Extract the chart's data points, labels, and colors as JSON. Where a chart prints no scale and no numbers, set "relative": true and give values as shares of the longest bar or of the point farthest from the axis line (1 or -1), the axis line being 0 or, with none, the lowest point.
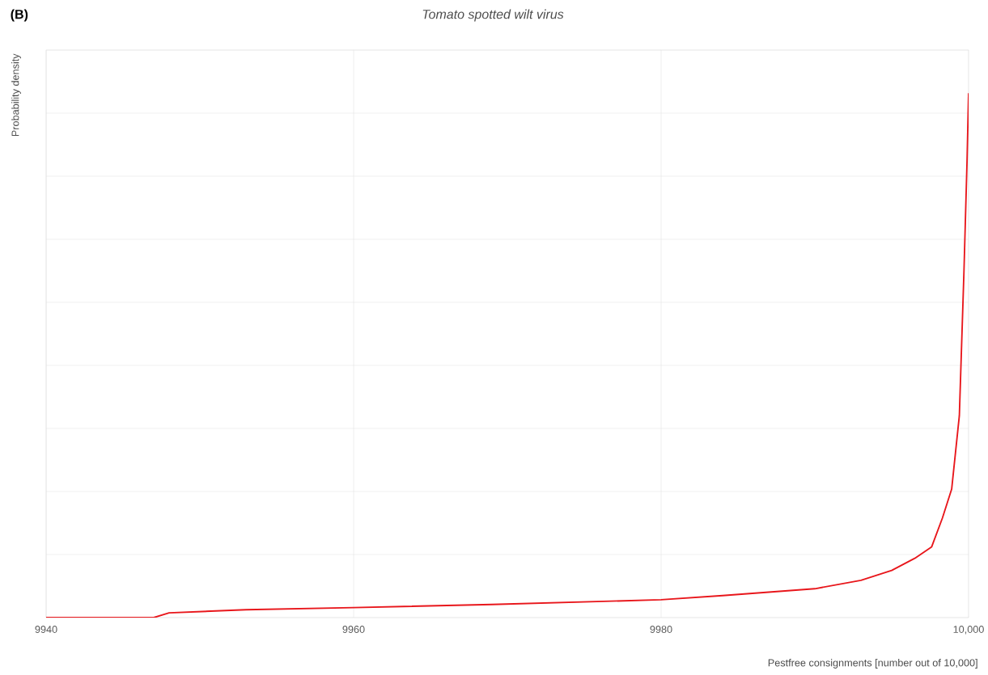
{
  "chart_data": {
    "type": "line",
    "title": "Tomato spotted wilt virus",
    "xlabel": "Pestfree consignments [number out of 10,000]",
    "ylabel": "Probability density",
    "annotations": [
      "(B)"
    ],
    "relative": true,
    "grid": true,
    "xlim": [
      9940,
      10000
    ],
    "xticks": [
      9940,
      9960,
      9980,
      {
        "value": 10000,
        "label": "10,000"
      }
    ],
    "series": [
      {
        "color": "#e8161b",
        "x": [
          9940,
          9947,
          9948,
          9953,
          9960,
          9969,
          9980,
          9984,
          9990,
          9993,
          9995,
          9996.5,
          9997.6,
          9998.3,
          9998.9,
          9999.4,
          9999.7,
          9999.9,
          10000
        ],
        "values": [
          0,
          0,
          0.009,
          0.015,
          0.019,
          0.025,
          0.034,
          0.042,
          0.055,
          0.071,
          0.09,
          0.113,
          0.135,
          0.19,
          0.245,
          0.385,
          0.66,
          0.87,
          1
        ]
      }
    ]
  }
}
